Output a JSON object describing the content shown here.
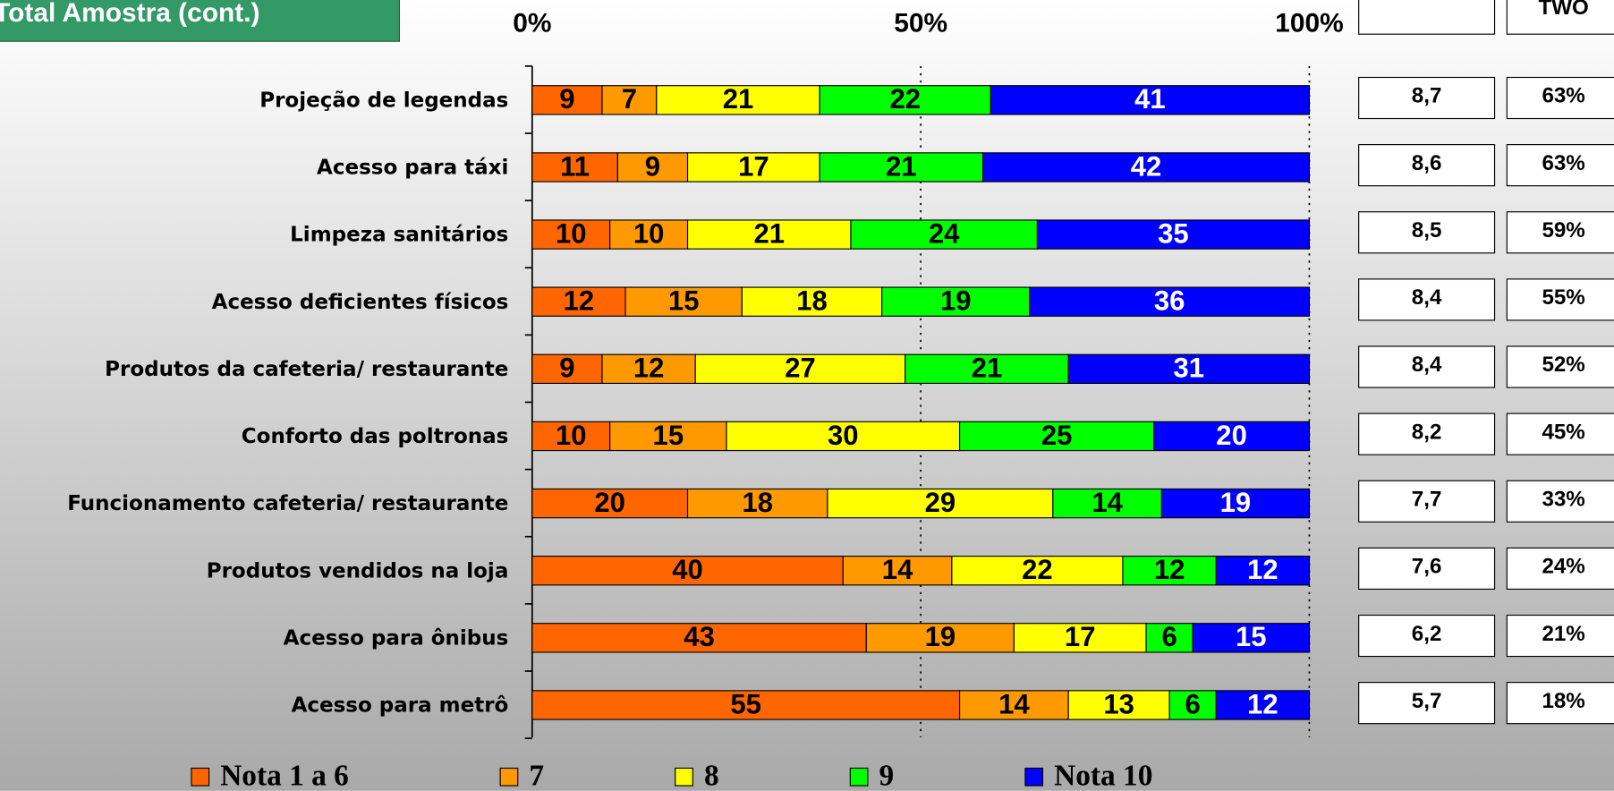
{
  "chart_data": {
    "type": "stacked-bar-horizontal",
    "title": "Total Amostra (cont.)",
    "categories": [
      "Projeção de legendas",
      "Acesso para táxi",
      "Limpeza sanitários",
      "Acesso deficientes físicos",
      "Produtos da cafeteria/ restaurante",
      "Conforto das poltronas",
      "Funcionamento cafeteria/ restaurante",
      "Produtos vendidos na loja",
      "Acesso para ônibus",
      "Acesso para metrô"
    ],
    "series": [
      {
        "name": "Nota 1 a 6",
        "color": "#ff6600",
        "values": [
          9,
          11,
          10,
          12,
          9,
          10,
          20,
          40,
          43,
          55
        ]
      },
      {
        "name": "7",
        "color": "#ff9900",
        "values": [
          7,
          9,
          10,
          15,
          12,
          15,
          18,
          14,
          19,
          14
        ]
      },
      {
        "name": "8",
        "color": "#ffff00",
        "values": [
          21,
          17,
          21,
          18,
          27,
          30,
          29,
          22,
          17,
          13
        ]
      },
      {
        "name": "9",
        "color": "#00ff00",
        "values": [
          22,
          21,
          24,
          19,
          21,
          25,
          14,
          12,
          6,
          6
        ]
      },
      {
        "name": "Nota 10",
        "color": "#0000ff",
        "values": [
          41,
          42,
          35,
          36,
          31,
          20,
          19,
          12,
          15,
          12
        ]
      }
    ],
    "xlim": [
      0,
      100
    ],
    "xticks": [
      {
        "value": 0,
        "label": "0%"
      },
      {
        "value": 50,
        "label": "50%"
      },
      {
        "value": 100,
        "label": "100%"
      }
    ],
    "grid": true
  },
  "table": {
    "header": "TWO",
    "mean": [
      "8,7",
      "8,6",
      "8,5",
      "8,4",
      "8,4",
      "8,2",
      "7,7",
      "7,6",
      "6,2",
      "5,7"
    ],
    "two": [
      "63%",
      "63%",
      "59%",
      "55%",
      "52%",
      "45%",
      "33%",
      "24%",
      "21%",
      "18%"
    ]
  }
}
